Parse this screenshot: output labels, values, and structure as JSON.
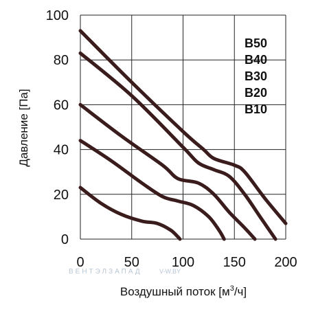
{
  "chart_data": {
    "type": "line",
    "xlabel_main": "Воздушный поток [м",
    "xlabel_sup": "3",
    "xlabel_tail": "/ч]",
    "ylabel": "Давление [Па]",
    "xlim": [
      0,
      200
    ],
    "ylim": [
      0,
      100
    ],
    "x_ticks": [
      "0",
      "50",
      "100",
      "150",
      "200"
    ],
    "y_ticks": [
      "0",
      "20",
      "40",
      "60",
      "80",
      "100"
    ],
    "x_tick_values": [
      0,
      50,
      100,
      150,
      200
    ],
    "y_tick_values": [
      0,
      20,
      40,
      60,
      80,
      100
    ],
    "grid": true,
    "legend_position": "top-right",
    "line_color": "#3a1c1c",
    "series": [
      {
        "name": "B50",
        "points": [
          [
            0,
            93
          ],
          [
            50,
            70
          ],
          [
            100,
            48
          ],
          [
            120,
            40
          ],
          [
            130,
            36
          ],
          [
            150,
            33
          ],
          [
            160,
            30
          ],
          [
            180,
            18
          ],
          [
            200,
            7
          ]
        ]
      },
      {
        "name": "B40",
        "points": [
          [
            0,
            83
          ],
          [
            50,
            64
          ],
          [
            100,
            41
          ],
          [
            115,
            34
          ],
          [
            130,
            31
          ],
          [
            145,
            28
          ],
          [
            160,
            20
          ],
          [
            175,
            10
          ],
          [
            190,
            0
          ]
        ]
      },
      {
        "name": "B30",
        "points": [
          [
            0,
            60
          ],
          [
            40,
            46
          ],
          [
            80,
            33
          ],
          [
            95,
            27
          ],
          [
            115,
            25
          ],
          [
            130,
            20
          ],
          [
            145,
            12
          ],
          [
            160,
            5
          ],
          [
            170,
            0
          ]
        ]
      },
      {
        "name": "B20",
        "points": [
          [
            0,
            44
          ],
          [
            30,
            35
          ],
          [
            60,
            25
          ],
          [
            80,
            19
          ],
          [
            95,
            17
          ],
          [
            110,
            15
          ],
          [
            125,
            10
          ],
          [
            135,
            4
          ],
          [
            140,
            0
          ]
        ]
      },
      {
        "name": "B10",
        "points": [
          [
            0,
            23
          ],
          [
            20,
            16
          ],
          [
            40,
            11
          ],
          [
            60,
            8
          ],
          [
            75,
            7
          ],
          [
            88,
            4
          ],
          [
            95,
            1
          ],
          [
            97,
            0
          ]
        ]
      }
    ]
  },
  "watermark": {
    "brand": "ВЕНТЭЛЗАПАД",
    "site": "V-W.BY"
  }
}
